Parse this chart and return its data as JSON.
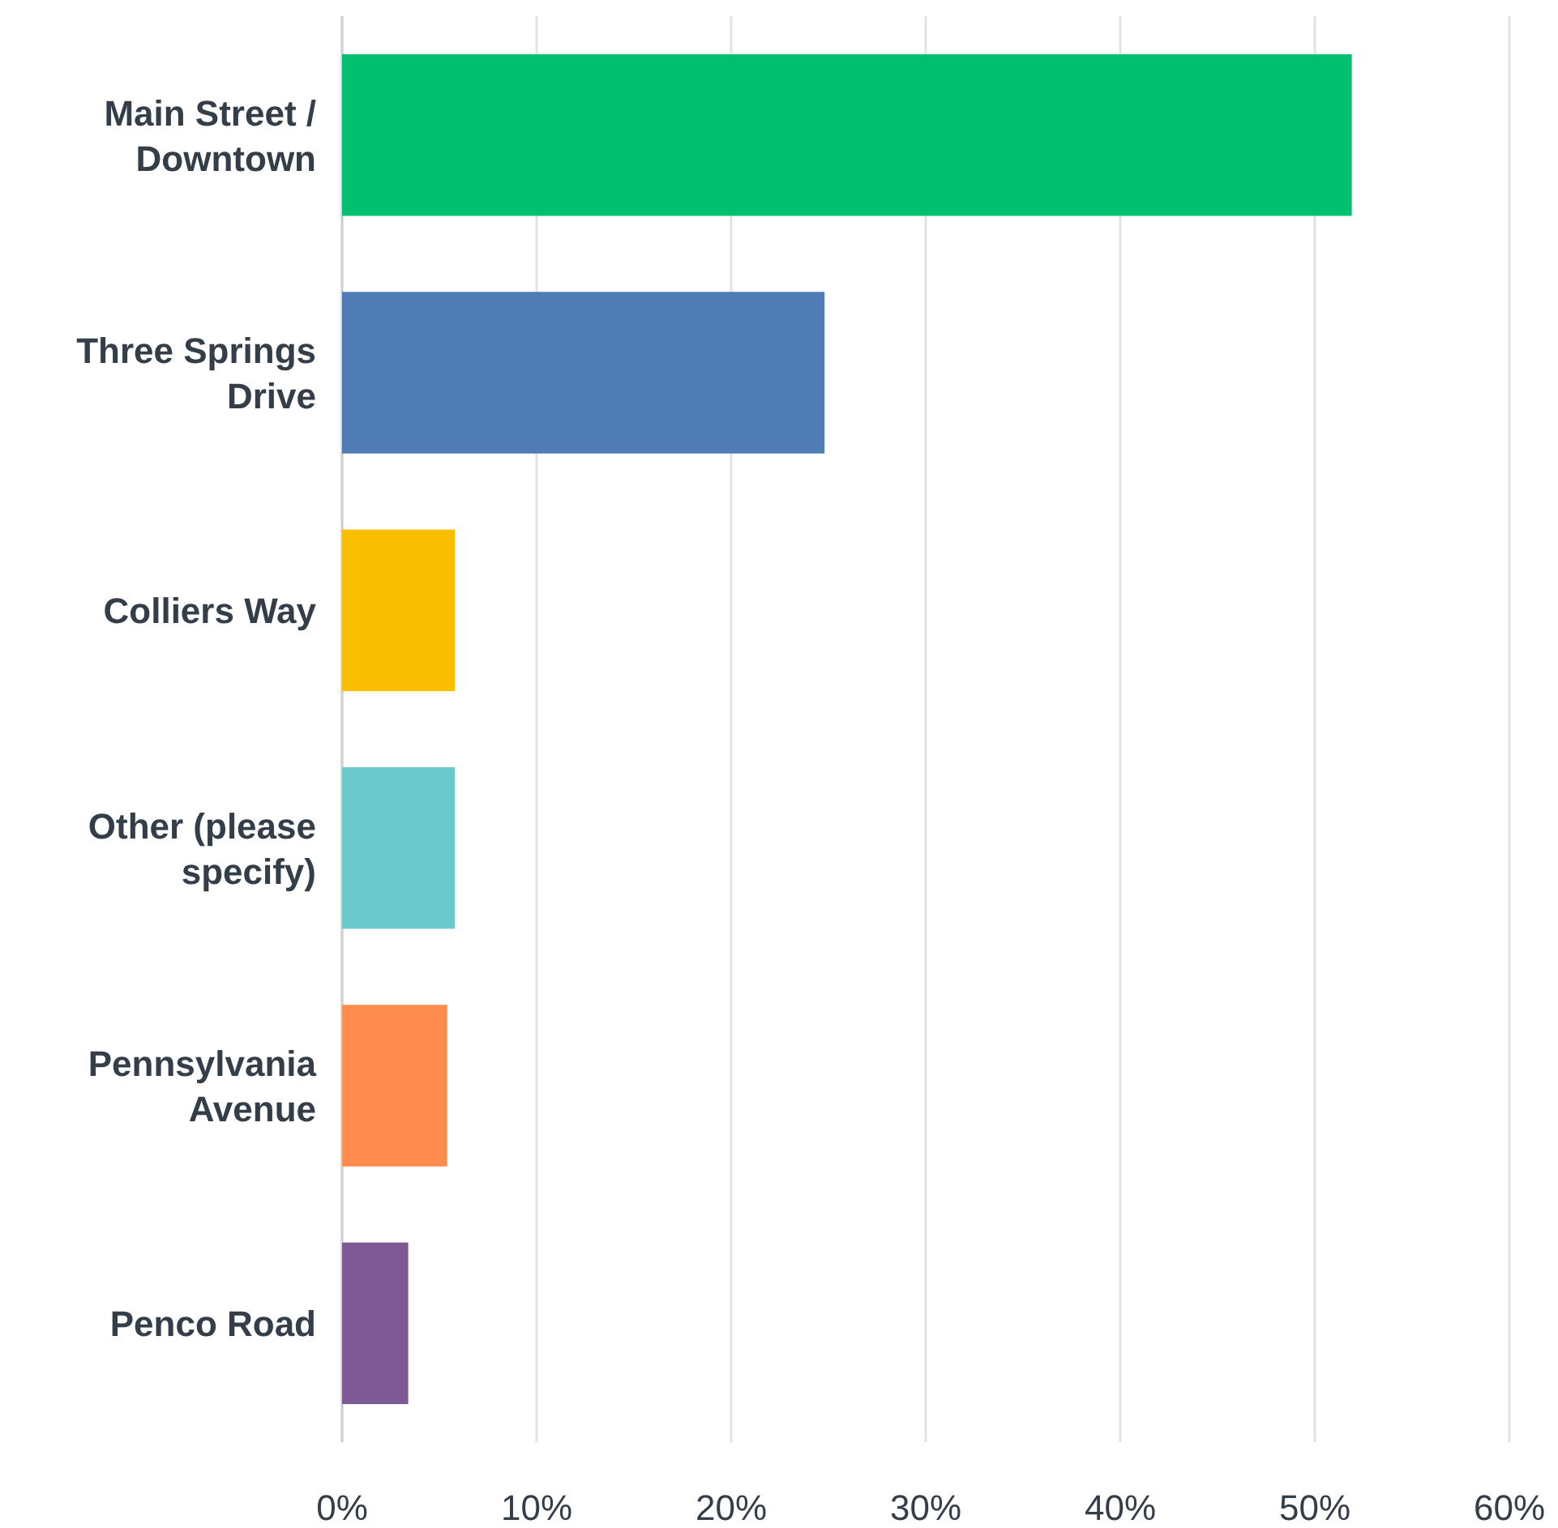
{
  "chart_data": {
    "type": "bar",
    "orientation": "horizontal",
    "categories": [
      "Main Street / Downtown",
      "Three Springs Drive",
      "Colliers Way",
      "Other (please specify)",
      "Pennsylvania Avenue",
      "Penco Road"
    ],
    "values": [
      51.9,
      24.8,
      5.8,
      5.8,
      5.4,
      3.4
    ],
    "colors": [
      "#00bf6f",
      "#507cb6",
      "#f9be00",
      "#6bc8cd",
      "#ff8b4f",
      "#7d5a94"
    ],
    "xlim": [
      0,
      60
    ],
    "xticks": [
      {
        "value": 0,
        "label": "0%"
      },
      {
        "value": 10,
        "label": "10%"
      },
      {
        "value": 20,
        "label": "20%"
      },
      {
        "value": 30,
        "label": "30%"
      },
      {
        "value": 40,
        "label": "40%"
      },
      {
        "value": 50,
        "label": "50%"
      },
      {
        "value": 60,
        "label": "60%"
      }
    ],
    "grid": "x"
  }
}
